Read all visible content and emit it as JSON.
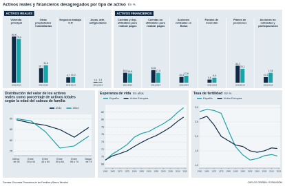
{
  "header": {
    "title": "Activos reales y financieros desagregados por tipo de activo",
    "unit": "En %"
  },
  "footer": {
    "source": "Fuentes: Encuesta Financiera de las Familias y Banco Mundial",
    "credit": "CARLOS GRIÑÁN / EXPANSIÓN"
  },
  "chart_data": [
    {
      "type": "bar",
      "title": "ACTIVOS REALES",
      "categories": [
        "Vivienda principal",
        "Otras propiedades inmobiliarias",
        "Negocios trabajo C.P.",
        "Joyas, arte, antigüedades"
      ],
      "series": [
        {
          "name": "2011",
          "color": "#0e2a47",
          "values": [
            83.8,
            26.1,
            9.7,
            1.0
          ],
          "value_labels": [
            "83,8",
            "26,1",
            "9,7",
            "1,0"
          ]
        },
        {
          "name": "2014",
          "color": "#1aa3a8",
          "values": [
            79.4,
            31.5,
            10.2,
            1.4
          ],
          "value_labels": [
            "79,4",
            "31,5",
            "10,2",
            "1,4"
          ]
        }
      ]
    },
    {
      "type": "bar",
      "title": "ACTIVOS FINANCIEROS",
      "categories": [
        "Cuentas y dep. utilizables para realizar pagos",
        "Cuentas no utilizables para realizar pagos",
        "Acciones cotizadas en Bolsa",
        "Fondos de inversión",
        "Planes de pensiones",
        "Acciones no cotizadas y participaciones"
      ],
      "series": [
        {
          "name": "2011",
          "color": "#0e2a47",
          "values": [
            18.0,
            22.8,
            10.4,
            5.6,
            30.7,
            10.1
          ],
          "value_labels": [
            "18,0",
            "22,8",
            "10,4",
            "5,6",
            "30,7",
            "10,1"
          ]
        },
        {
          "name": "2014",
          "color": "#1aa3a8",
          "values": [
            16.8,
            17.9,
            12.6,
            9.0,
            25.1,
            17.8
          ],
          "value_labels": [
            "16,8",
            "17,9",
            "12,6",
            "9,0",
            "25,1",
            "17,8"
          ]
        }
      ]
    },
    {
      "type": "line",
      "title": "Distribución del valor de los activos reales como porcentaje de activos totales según la edad del cabeza de familia",
      "categories": [
        "Menor de 35",
        "Entre 35 y 44",
        "Entre 45 y 54",
        "Entre 55 y 64",
        "Entre 65 y 74",
        "Mayor de 74"
      ],
      "series": [
        {
          "name": "2011",
          "color": "#0e2a47",
          "values": [
            89.5,
            88,
            87,
            85,
            81.5,
            86
          ]
        },
        {
          "name": "2014",
          "color": "#1aa3a8",
          "values": [
            90,
            89,
            84,
            76.5,
            77.5,
            82
          ]
        }
      ],
      "ylim": [
        73,
        92
      ],
      "yticks": [
        75,
        80,
        85,
        90
      ],
      "grid": true
    },
    {
      "type": "line",
      "title": "Esperanza de vida",
      "unit": "En años",
      "x": [
        1960,
        1965,
        1970,
        1975,
        1980,
        1985,
        1990,
        1995,
        2000,
        2005,
        2010,
        2014
      ],
      "series": [
        {
          "name": "España",
          "color": "#1aa3a8",
          "values": [
            69.1,
            70.8,
            72.0,
            73.3,
            75.3,
            76.3,
            76.8,
            77.9,
            78.9,
            80.2,
            82.0,
            83.2
          ]
        },
        {
          "name": "Unión Europea",
          "color": "#0e2a47",
          "values": [
            69.2,
            70.3,
            70.9,
            71.6,
            72.8,
            73.9,
            74.9,
            75.7,
            76.8,
            78.0,
            79.6,
            80.7
          ]
        }
      ],
      "xlim": [
        1960,
        2016
      ],
      "xticks": [
        1960,
        1965,
        1970,
        1975,
        1980,
        1985,
        1990,
        1995,
        2000,
        2005,
        2010,
        2015
      ],
      "ylim": [
        67,
        84
      ],
      "yticks": [
        68,
        70,
        72,
        74,
        76,
        78,
        80,
        82
      ],
      "grid": true
    },
    {
      "type": "line",
      "title": "Tasa de fertilidad",
      "unit": "En %",
      "x": [
        1960,
        1965,
        1970,
        1975,
        1980,
        1985,
        1990,
        1995,
        2000,
        2005,
        2010,
        2014
      ],
      "series": [
        {
          "name": "España",
          "color": "#1aa3a8",
          "values": [
            2.86,
            2.94,
            2.9,
            2.8,
            2.2,
            1.64,
            1.36,
            1.18,
            1.23,
            1.33,
            1.37,
            1.32
          ]
        },
        {
          "name": "Unión Europea",
          "color": "#0e2a47",
          "values": [
            2.6,
            2.7,
            2.4,
            2.0,
            1.85,
            1.7,
            1.65,
            1.5,
            1.45,
            1.5,
            1.6,
            1.58
          ]
        }
      ],
      "xlim": [
        1960,
        2016
      ],
      "xticks": [
        1960,
        1965,
        1970,
        1975,
        1980,
        1985,
        1990,
        1995,
        2000,
        2005,
        2010,
        2015
      ],
      "ylim": [
        0.9,
        3.1
      ],
      "yticks": [
        {
          "value": 1.0,
          "label": "1,0"
        },
        {
          "value": 1.5,
          "label": "1,5"
        },
        {
          "value": 2.0,
          "label": "2,0"
        },
        {
          "value": 2.5,
          "label": "2,5"
        },
        {
          "value": 3.0,
          "label": "3,0"
        }
      ],
      "grid": true
    }
  ]
}
